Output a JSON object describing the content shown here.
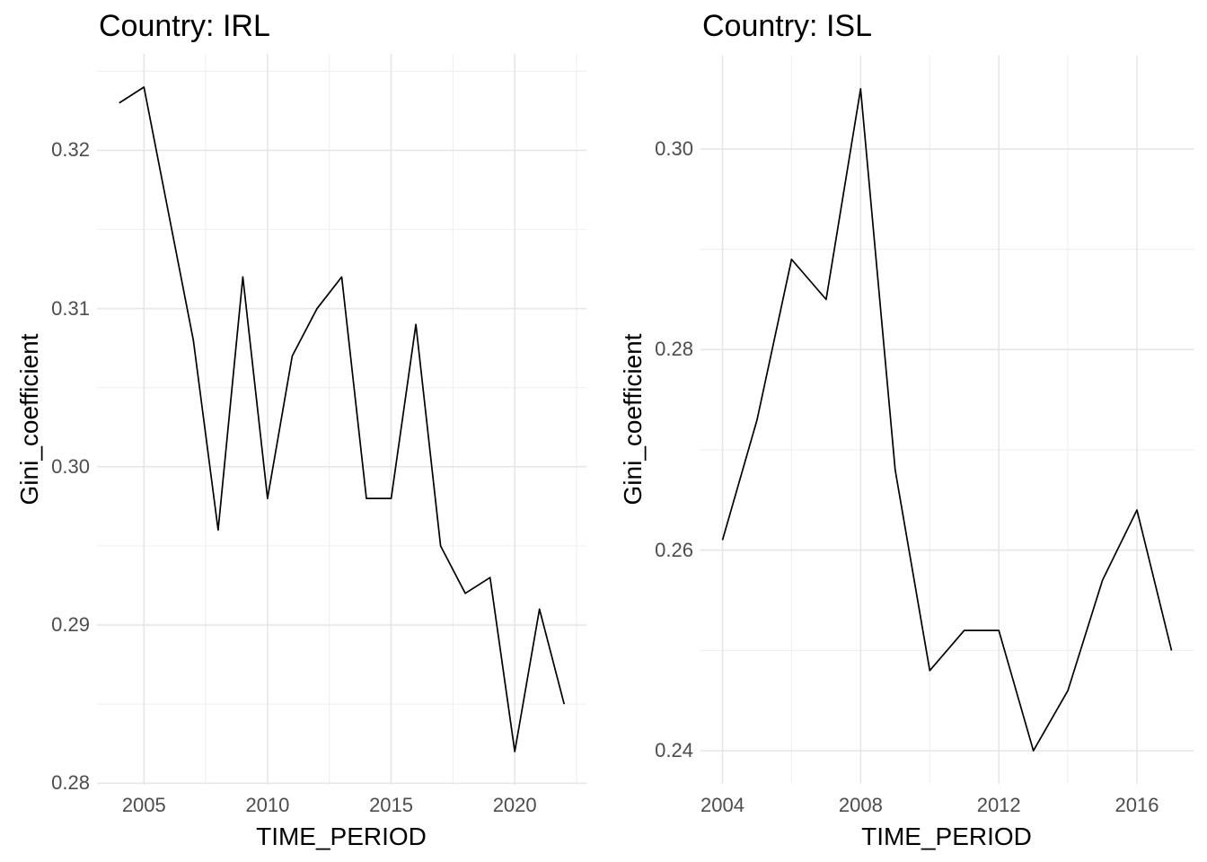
{
  "figure": {
    "background": "#FFFFFF"
  },
  "styles": {
    "line_color": "#000000",
    "grid_major_color": "#E6E6E6",
    "grid_minor_color": "#F0F0F0",
    "tick_label_color": "#4D4D4D",
    "title_color": "#000000",
    "axis_title_color": "#000000"
  },
  "chart_data": [
    {
      "type": "line",
      "title": "Country: IRL",
      "xlabel": "TIME_PERIOD",
      "ylabel": "Gini_coefficient",
      "series_name": "Gini coefficient IRL",
      "x": [
        2004,
        2005,
        2006,
        2007,
        2008,
        2009,
        2010,
        2011,
        2012,
        2013,
        2014,
        2015,
        2016,
        2017,
        2018,
        2019,
        2020,
        2021,
        2022
      ],
      "y": [
        0.323,
        0.324,
        0.316,
        0.308,
        0.296,
        0.312,
        0.298,
        0.307,
        0.31,
        0.312,
        0.298,
        0.298,
        0.309,
        0.295,
        0.292,
        0.293,
        0.282,
        0.291,
        0.285
      ],
      "xlim": [
        2003.1,
        2022.9
      ],
      "ylim": [
        0.2799,
        0.3261
      ],
      "x_tick_values": [
        2005,
        2010,
        2015,
        2020
      ],
      "x_tick_labels": [
        "2005",
        "2010",
        "2015",
        "2020"
      ],
      "x_minor_values": [
        2007.5,
        2012.5,
        2017.5,
        2022.5
      ],
      "y_tick_values": [
        0.28,
        0.29,
        0.3,
        0.31,
        0.32
      ],
      "y_tick_labels": [
        "0.28",
        "0.29",
        "0.30",
        "0.31",
        "0.32"
      ],
      "y_minor_values": [
        0.285,
        0.295,
        0.305,
        0.315,
        0.325
      ],
      "grid": true,
      "legend": "none"
    },
    {
      "type": "line",
      "title": "Country: ISL",
      "xlabel": "TIME_PERIOD",
      "ylabel": "Gini_coefficient",
      "series_name": "Gini coefficient ISL",
      "x": [
        2004,
        2005,
        2006,
        2007,
        2008,
        2009,
        2010,
        2011,
        2012,
        2013,
        2014,
        2015,
        2016,
        2017
      ],
      "y": [
        0.261,
        0.273,
        0.289,
        0.285,
        0.306,
        0.268,
        0.248,
        0.252,
        0.252,
        0.24,
        0.246,
        0.257,
        0.264,
        0.25
      ],
      "xlim": [
        2003.35,
        2017.65
      ],
      "ylim": [
        0.2367,
        0.3093
      ],
      "x_tick_values": [
        2004,
        2008,
        2012,
        2016
      ],
      "x_tick_labels": [
        "2004",
        "2008",
        "2012",
        "2016"
      ],
      "x_minor_values": [
        2006,
        2010,
        2014
      ],
      "y_tick_values": [
        0.24,
        0.26,
        0.28,
        0.3
      ],
      "y_tick_labels": [
        "0.24",
        "0.26",
        "0.28",
        "0.30"
      ],
      "y_minor_values": [
        0.25,
        0.27,
        0.29
      ],
      "grid": true,
      "legend": "none"
    }
  ]
}
